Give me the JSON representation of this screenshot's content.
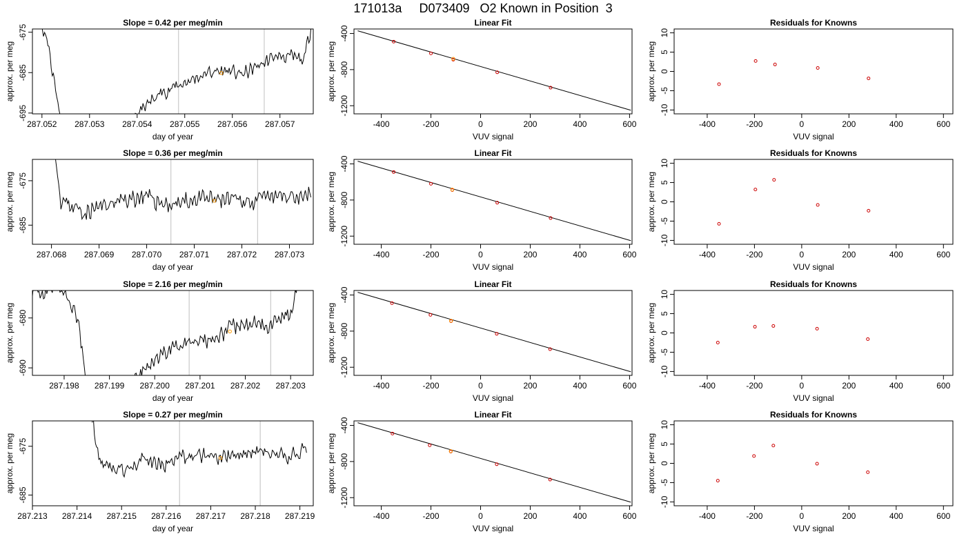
{
  "figure": {
    "title": "171013a     D073409   O2 Known in Position  3"
  },
  "chart_data": [
    {
      "type": "line",
      "title": "Slope =  0.42  per meg/min",
      "xlabel": "day of year",
      "ylabel": "approx. per meg",
      "xlim": [
        287.0518,
        287.0577
      ],
      "ylim": [
        -695.2,
        -674.2
      ],
      "xticks": [
        "287.052",
        "287.053",
        "287.054",
        "287.055",
        "287.056",
        "287.057"
      ],
      "xtick_values": [
        287.052,
        287.053,
        287.054,
        287.055,
        287.056,
        287.057
      ],
      "yticks": [
        "-695",
        "-685",
        "-675"
      ],
      "ytick_values": [
        -695,
        -685,
        -675
      ],
      "vlines": [
        287.05487,
        287.05667
      ],
      "highlight_point": {
        "x": 287.05577,
        "y": -685.1
      },
      "trace": {
        "x_start": 287.0518,
        "x_end": 287.0577,
        "anchors": [
          [
            287.0518,
            -670
          ],
          [
            287.0521,
            -676
          ],
          [
            287.0523,
            -690
          ],
          [
            287.05245,
            -700
          ],
          [
            287.0537,
            -700
          ],
          [
            287.0541,
            -694
          ],
          [
            287.0545,
            -690
          ],
          [
            287.0548,
            -688.5
          ],
          [
            287.0552,
            -686.5
          ],
          [
            287.0555,
            -685
          ],
          [
            287.0559,
            -684.5
          ],
          [
            287.0562,
            -685.5
          ],
          [
            287.0566,
            -683
          ],
          [
            287.0569,
            -681
          ],
          [
            287.0572,
            -681
          ],
          [
            287.0575,
            -682
          ],
          [
            287.05765,
            -674
          ],
          [
            287.0577,
            -670
          ]
        ],
        "noise": 1.6,
        "seed": 11
      }
    },
    {
      "type": "scatter",
      "title": "Linear Fit",
      "xlabel": "VUV signal",
      "ylabel": "approx. per meg",
      "xlim": [
        -510,
        610
      ],
      "ylim": [
        -1290,
        -350
      ],
      "xticks": [
        "-400",
        "-200",
        "0",
        "200",
        "400",
        "600"
      ],
      "xtick_values": [
        -400,
        -200,
        0,
        200,
        400,
        600
      ],
      "yticks": [
        "-1200",
        "-800",
        "-400"
      ],
      "ytick_values": [
        -1200,
        -800,
        -400
      ],
      "fit_line": {
        "x": [
          -495,
          605
        ],
        "y": [
          -370,
          -1250
        ]
      },
      "points": [
        {
          "x": -350,
          "y": -490
        },
        {
          "x": -200,
          "y": -620
        },
        {
          "x": -110,
          "y": -690
        },
        {
          "x": 67,
          "y": -830
        },
        {
          "x": 282,
          "y": -1000
        }
      ],
      "highlight_point": {
        "x": -110,
        "y": -680
      }
    },
    {
      "type": "scatter",
      "title": "Residuals for Knowns",
      "xlabel": "VUV signal",
      "ylabel": "approx. per meg",
      "xlim": [
        -540,
        640
      ],
      "ylim": [
        -11,
        11
      ],
      "xticks": [
        "-400",
        "-200",
        "0",
        "200",
        "400",
        "600"
      ],
      "xtick_values": [
        -400,
        -200,
        0,
        200,
        400,
        600
      ],
      "yticks": [
        "-10",
        "-5",
        "0",
        "5",
        "10"
      ],
      "ytick_values": [
        -10,
        -5,
        0,
        5,
        10
      ],
      "points": [
        {
          "x": -350,
          "y": -3.3
        },
        {
          "x": -195,
          "y": 2.7
        },
        {
          "x": -113,
          "y": 1.8
        },
        {
          "x": 68,
          "y": 0.9
        },
        {
          "x": 283,
          "y": -1.8
        }
      ]
    },
    {
      "type": "line",
      "title": "Slope =  0.36  per meg/min",
      "xlabel": "day of year",
      "ylabel": "approx. per meg",
      "xlim": [
        287.0676,
        287.0735
      ],
      "ylim": [
        -689.3,
        -670.2
      ],
      "xticks": [
        "287.068",
        "287.069",
        "287.070",
        "287.071",
        "287.072",
        "287.073"
      ],
      "xtick_values": [
        287.068,
        287.069,
        287.07,
        287.071,
        287.072,
        287.073
      ],
      "yticks": [
        "-685",
        "-675"
      ],
      "ytick_values": [
        -685,
        -675
      ],
      "vlines": [
        287.07051,
        287.07233
      ],
      "highlight_point": {
        "x": 287.07142,
        "y": -679.5
      },
      "trace": {
        "x_start": 287.06806,
        "x_end": 287.07345,
        "anchors": [
          [
            287.06806,
            -667
          ],
          [
            287.0682,
            -679.5
          ],
          [
            287.0687,
            -682
          ],
          [
            287.0693,
            -680
          ],
          [
            287.0699,
            -678.5
          ],
          [
            287.0705,
            -680.5
          ],
          [
            287.0711,
            -679
          ],
          [
            287.0717,
            -679.5
          ],
          [
            287.0723,
            -679.5
          ],
          [
            287.0729,
            -678.5
          ],
          [
            287.07345,
            -678
          ]
        ],
        "noise": 1.9,
        "seed": 23
      }
    },
    {
      "type": "scatter",
      "title": "Linear Fit",
      "xlabel": "VUV signal",
      "ylabel": "approx. per meg",
      "xlim": [
        -510,
        610
      ],
      "ylim": [
        -1290,
        -350
      ],
      "xticks": [
        "-400",
        "-200",
        "0",
        "200",
        "400",
        "600"
      ],
      "xtick_values": [
        -400,
        -200,
        0,
        200,
        400,
        600
      ],
      "yticks": [
        "-1200",
        "-800",
        "-400"
      ],
      "ytick_values": [
        -1200,
        -800,
        -400
      ],
      "fit_line": {
        "x": [
          -495,
          605
        ],
        "y": [
          -370,
          -1250
        ]
      },
      "points": [
        {
          "x": -350,
          "y": -490
        },
        {
          "x": -200,
          "y": -620
        },
        {
          "x": -114,
          "y": -690
        },
        {
          "x": 67,
          "y": -830
        },
        {
          "x": 282,
          "y": -1000
        }
      ],
      "highlight_point": {
        "x": -114,
        "y": -685
      }
    },
    {
      "type": "scatter",
      "title": "Residuals for Knowns",
      "xlabel": "VUV signal",
      "ylabel": "approx. per meg",
      "xlim": [
        -540,
        640
      ],
      "ylim": [
        -11,
        11
      ],
      "xticks": [
        "-400",
        "-200",
        "0",
        "200",
        "400",
        "600"
      ],
      "xtick_values": [
        -400,
        -200,
        0,
        200,
        400,
        600
      ],
      "yticks": [
        "-10",
        "-5",
        "0",
        "5",
        "10"
      ],
      "ytick_values": [
        -10,
        -5,
        0,
        5,
        10
      ],
      "points": [
        {
          "x": -350,
          "y": -5.7
        },
        {
          "x": -196,
          "y": 3.2
        },
        {
          "x": -117,
          "y": 5.7
        },
        {
          "x": 68,
          "y": -0.8
        },
        {
          "x": 283,
          "y": -2.3
        }
      ]
    },
    {
      "type": "line",
      "title": "Slope =  2.16  per meg/min",
      "xlabel": "day of year",
      "ylabel": "approx. per meg",
      "xlim": [
        287.1973,
        287.2035
      ],
      "ylim": [
        -691.5,
        -674.5
      ],
      "xticks": [
        "287.198",
        "287.199",
        "287.200",
        "287.201",
        "287.202",
        "287.203"
      ],
      "xtick_values": [
        287.198,
        287.199,
        287.2,
        287.201,
        287.202,
        287.203
      ],
      "yticks": [
        "-690",
        "-680"
      ],
      "ytick_values": [
        -690,
        -680
      ],
      "vlines": [
        287.20076,
        287.20256
      ],
      "highlight_point": {
        "x": 287.20166,
        "y": -682.7
      },
      "trace": {
        "x_start": 287.1973,
        "x_end": 287.2032,
        "anchors": [
          [
            287.1973,
            -674.5
          ],
          [
            287.1976,
            -675
          ],
          [
            287.1978,
            -673
          ],
          [
            287.198,
            -675
          ],
          [
            287.1983,
            -680
          ],
          [
            287.19845,
            -690
          ],
          [
            287.1986,
            -697
          ],
          [
            287.1993,
            -697
          ],
          [
            287.1997,
            -691
          ],
          [
            287.2002,
            -687
          ],
          [
            287.2008,
            -684.5
          ],
          [
            287.2013,
            -684
          ],
          [
            287.2017,
            -682
          ],
          [
            287.2021,
            -681
          ],
          [
            287.2025,
            -681.5
          ],
          [
            287.2028,
            -679.5
          ],
          [
            287.20305,
            -679
          ],
          [
            287.20315,
            -672
          ],
          [
            287.2032,
            -670
          ]
        ],
        "noise": 1.5,
        "seed": 37
      }
    },
    {
      "type": "scatter",
      "title": "Linear Fit",
      "xlabel": "VUV signal",
      "ylabel": "approx. per meg",
      "xlim": [
        -510,
        610
      ],
      "ylim": [
        -1290,
        -350
      ],
      "xticks": [
        "-400",
        "-200",
        "0",
        "200",
        "400",
        "600"
      ],
      "xtick_values": [
        -400,
        -200,
        0,
        200,
        400,
        600
      ],
      "yticks": [
        "-1200",
        "-800",
        "-400"
      ],
      "ytick_values": [
        -1200,
        -800,
        -400
      ],
      "fit_line": {
        "x": [
          -495,
          605
        ],
        "y": [
          -370,
          -1250
        ]
      },
      "points": [
        {
          "x": -357,
          "y": -490
        },
        {
          "x": -202,
          "y": -620
        },
        {
          "x": -119,
          "y": -690
        },
        {
          "x": 65,
          "y": -830
        },
        {
          "x": 280,
          "y": -1000
        }
      ],
      "highlight_point": {
        "x": -119,
        "y": -685
      }
    },
    {
      "type": "scatter",
      "title": "Residuals for Knowns",
      "xlabel": "VUV signal",
      "ylabel": "approx. per meg",
      "xlim": [
        -540,
        640
      ],
      "ylim": [
        -11,
        11
      ],
      "xticks": [
        "-400",
        "-200",
        "0",
        "200",
        "400",
        "600"
      ],
      "xtick_values": [
        -400,
        -200,
        0,
        200,
        400,
        600
      ],
      "yticks": [
        "-10",
        "-5",
        "0",
        "5",
        "10"
      ],
      "ytick_values": [
        -10,
        -5,
        0,
        5,
        10
      ],
      "points": [
        {
          "x": -355,
          "y": -2.5
        },
        {
          "x": -198,
          "y": 1.6
        },
        {
          "x": -120,
          "y": 1.8
        },
        {
          "x": 65,
          "y": 1.1
        },
        {
          "x": 280,
          "y": -1.6
        }
      ]
    },
    {
      "type": "line",
      "title": "Slope =  0.27  per meg/min",
      "xlabel": "day of year",
      "ylabel": "approx. per meg",
      "xlim": [
        287.213,
        287.2193
      ],
      "ylim": [
        -687.2,
        -669.8
      ],
      "xticks": [
        "287.213",
        "287.214",
        "287.215",
        "287.216",
        "287.217",
        "287.218",
        "287.219"
      ],
      "xtick_values": [
        287.213,
        287.214,
        287.215,
        287.216,
        287.217,
        287.218,
        287.219
      ],
      "yticks": [
        "-685",
        "-675"
      ],
      "ytick_values": [
        -685,
        -675
      ],
      "vlines": [
        287.2163,
        287.21811
      ],
      "highlight_point": {
        "x": 287.21722,
        "y": -677.4
      },
      "trace": {
        "x_start": 287.21434,
        "x_end": 287.21915,
        "anchors": [
          [
            287.21434,
            -669
          ],
          [
            287.2145,
            -678
          ],
          [
            287.215,
            -680
          ],
          [
            287.2155,
            -677.5
          ],
          [
            287.2159,
            -679
          ],
          [
            287.2164,
            -677
          ],
          [
            287.2169,
            -676.5
          ],
          [
            287.2173,
            -677.5
          ],
          [
            287.2178,
            -676.5
          ],
          [
            287.2183,
            -676.5
          ],
          [
            287.2187,
            -677.5
          ],
          [
            287.21915,
            -675.5
          ]
        ],
        "noise": 1.5,
        "seed": 53
      }
    },
    {
      "type": "scatter",
      "title": "Linear Fit",
      "xlabel": "VUV signal",
      "ylabel": "approx. per meg",
      "xlim": [
        -510,
        610
      ],
      "ylim": [
        -1290,
        -350
      ],
      "xticks": [
        "-400",
        "-200",
        "0",
        "200",
        "400",
        "600"
      ],
      "xtick_values": [
        -400,
        -200,
        0,
        200,
        400,
        600
      ],
      "yticks": [
        "-1200",
        "-800",
        "-400"
      ],
      "ytick_values": [
        -1200,
        -800,
        -400
      ],
      "fit_line": {
        "x": [
          -495,
          605
        ],
        "y": [
          -370,
          -1250
        ]
      },
      "points": [
        {
          "x": -355,
          "y": -490
        },
        {
          "x": -205,
          "y": -620
        },
        {
          "x": -120,
          "y": -690
        },
        {
          "x": 65,
          "y": -830
        },
        {
          "x": 280,
          "y": -1000
        }
      ],
      "highlight_point": {
        "x": -120,
        "y": -685
      }
    },
    {
      "type": "scatter",
      "title": "Residuals for Knowns",
      "xlabel": "VUV signal",
      "ylabel": "approx. per meg",
      "xlim": [
        -540,
        640
      ],
      "ylim": [
        -11,
        11
      ],
      "xticks": [
        "-400",
        "-200",
        "0",
        "200",
        "400",
        "600"
      ],
      "xtick_values": [
        -400,
        -200,
        0,
        200,
        400,
        600
      ],
      "yticks": [
        "-10",
        "-5",
        "0",
        "5",
        "10"
      ],
      "ytick_values": [
        -10,
        -5,
        0,
        5,
        10
      ],
      "points": [
        {
          "x": -355,
          "y": -4.5
        },
        {
          "x": -202,
          "y": 1.9
        },
        {
          "x": -120,
          "y": 4.6
        },
        {
          "x": 65,
          "y": -0.1
        },
        {
          "x": 280,
          "y": -2.3
        }
      ]
    }
  ],
  "colors": {
    "axis": "#000000",
    "line": "#000000",
    "vline": "#bebebe",
    "point": "#cc0000",
    "highlight": "#ff9900"
  }
}
